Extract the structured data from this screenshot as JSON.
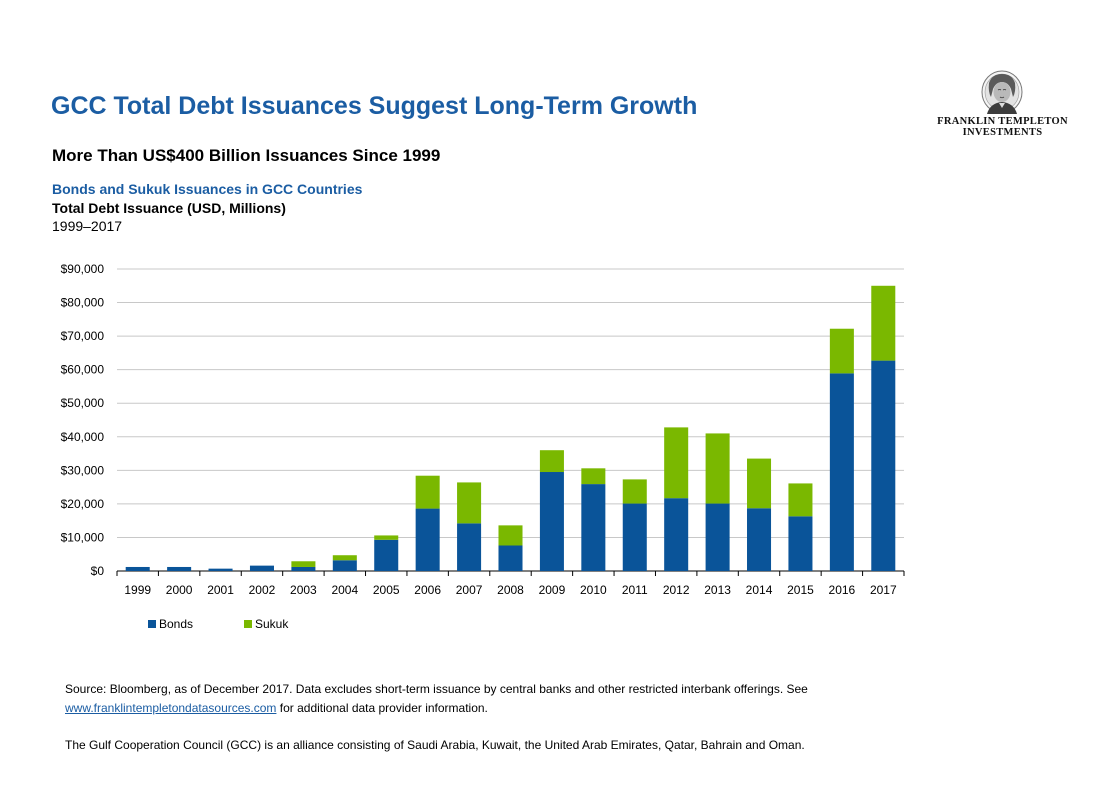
{
  "header": {
    "title": "GCC Total Debt Issuances Suggest Long-Term Growth",
    "subtitle": "More Than US$400 Billion Issuances Since 1999",
    "chart_heading": "Bonds and Sukuk Issuances in GCC Countries",
    "chart_unit": "Total Debt Issuance (USD, Millions)",
    "chart_range": "1999–2017"
  },
  "logo": {
    "line1": "FRANKLIN TEMPLETON",
    "line2": "INVESTMENTS",
    "icon": "benjamin-franklin-portrait-icon"
  },
  "chart_data": {
    "type": "bar",
    "stacked": true,
    "categories": [
      "1999",
      "2000",
      "2001",
      "2002",
      "2003",
      "2004",
      "2005",
      "2006",
      "2007",
      "2008",
      "2009",
      "2010",
      "2011",
      "2012",
      "2013",
      "2014",
      "2015",
      "2016",
      "2017"
    ],
    "series": [
      {
        "name": "Bonds",
        "color": "#0a5499",
        "values": [
          1200,
          1200,
          700,
          1600,
          1200,
          3200,
          9300,
          18600,
          14200,
          7600,
          29500,
          25900,
          20100,
          21700,
          20100,
          18700,
          16300,
          58900,
          62700
        ]
      },
      {
        "name": "Sukuk",
        "color": "#7ab800",
        "values": [
          0,
          0,
          0,
          0,
          1700,
          1500,
          1300,
          9800,
          12200,
          6000,
          6500,
          4700,
          7200,
          21100,
          20900,
          14800,
          9800,
          13300,
          22300
        ]
      }
    ],
    "y_ticks": [
      "$0",
      "$10,000",
      "$20,000",
      "$30,000",
      "$40,000",
      "$50,000",
      "$60,000",
      "$70,000",
      "$80,000",
      "$90,000"
    ],
    "ylim": [
      0,
      90000
    ],
    "grid": true,
    "legend_position": "bottom-left"
  },
  "footnotes": {
    "source_text": "Source: Bloomberg, as of December 2017. Data  excludes short-term issuance by central banks and other restricted interbank offerings. See",
    "source_link": "www.franklintempletondatasources.com",
    "source_after": " for additional data provider information.",
    "gcc_note": "The Gulf Cooperation Council (GCC) is an alliance consisting of Saudi Arabia, Kuwait,  the United Arab Emirates, Qatar,  Bahrain and Oman."
  }
}
